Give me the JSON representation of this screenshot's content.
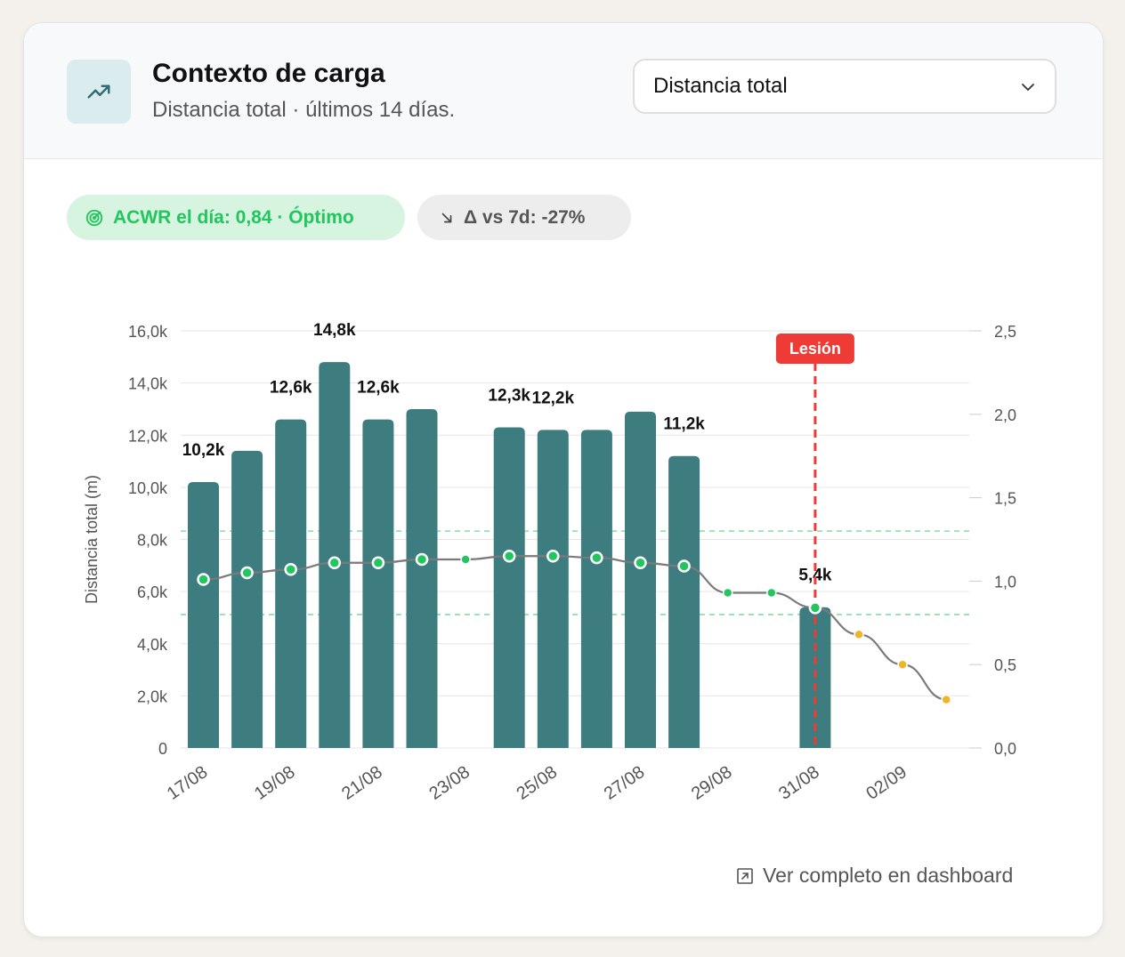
{
  "header": {
    "title": "Contexto de carga",
    "subtitle": "Distancia total · últimos 14 días.",
    "icon": "trending-up-icon"
  },
  "metric_select": {
    "value": "Distancia total",
    "icon": "chevron-down-icon"
  },
  "badges": {
    "acwr": {
      "icon": "target-icon",
      "label": "ACWR el día: 0,84 · Óptimo"
    },
    "delta": {
      "icon": "arrow-down-right-icon",
      "label": "Δ vs 7d: -27%"
    }
  },
  "footer": {
    "icon": "external-link-icon",
    "link_label": "Ver completo en dashboard"
  },
  "colors": {
    "bar": "#3d7d80",
    "line": "#7a7a7a",
    "point_actual": "#22c55e",
    "point_forecast": "#f0b429",
    "optimal_band": "#86dca3",
    "injury": "#ef3b36",
    "accent_bg": "#d6f4df"
  },
  "chart_data": {
    "type": "bar",
    "x": [
      "17/08",
      "18/08",
      "19/08",
      "20/08",
      "21/08",
      "22/08",
      "23/08",
      "24/08",
      "25/08",
      "26/08",
      "27/08",
      "28/08",
      "29/08",
      "30/08",
      "31/08",
      "01/09",
      "02/09",
      "03/09"
    ],
    "x_tick_labels": [
      "17/08",
      "19/08",
      "21/08",
      "23/08",
      "25/08",
      "27/08",
      "29/08",
      "31/08",
      "02/09"
    ],
    "ylabel": "Distancia total (m)",
    "y_ticks": [
      "0",
      "2,0k",
      "4,0k",
      "6,0k",
      "8,0k",
      "10,0k",
      "12,0k",
      "14,0k",
      "16,0k"
    ],
    "ylim": [
      0,
      16000
    ],
    "y2_ticks": [
      "0,0",
      "0,5",
      "1,0",
      "1,5",
      "2,0",
      "2,5"
    ],
    "y2lim": [
      0,
      2.5
    ],
    "grid": true,
    "series": [
      {
        "type": "bar",
        "values": [
          10200,
          11400,
          12600,
          14800,
          12600,
          13000,
          null,
          12300,
          12200,
          12200,
          12900,
          11200,
          null,
          null,
          5400,
          null,
          null,
          null
        ],
        "data_labels": [
          "10,2k",
          null,
          "12,6k",
          "14,8k",
          "12,6k",
          null,
          null,
          "12,3k",
          "12,2k",
          null,
          null,
          "11,2k",
          null,
          null,
          "5,4k",
          null,
          null,
          null
        ]
      },
      {
        "type": "line",
        "axis": "right",
        "values": [
          1.01,
          1.05,
          1.07,
          1.11,
          1.11,
          1.13,
          1.13,
          1.15,
          1.15,
          1.14,
          1.11,
          1.09,
          0.93,
          0.93,
          0.84,
          0.68,
          0.5,
          0.29
        ],
        "point_style": [
          "ring",
          "ring",
          "ring",
          "ring",
          "ring",
          "ring",
          "dot",
          "ring",
          "ring",
          "ring",
          "ring",
          "ring",
          "dot",
          "dot",
          "ring",
          "forecast",
          "forecast",
          "forecast"
        ]
      }
    ],
    "optimal_band": [
      0.8,
      1.3
    ],
    "annotations": [
      {
        "type": "vline",
        "x": "31/08",
        "label": "Lesión"
      }
    ]
  }
}
